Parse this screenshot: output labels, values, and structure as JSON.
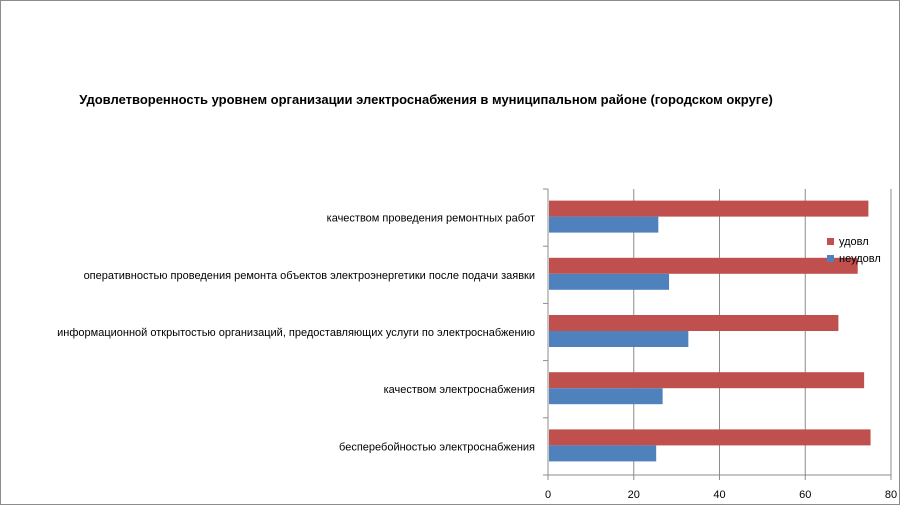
{
  "chart_data": {
    "type": "bar",
    "orientation": "horizontal",
    "title": "Удовлетворенность уровнем организации электроснабжения в муниципальном районе (городском округе)",
    "categories": [
      "качеством проведения ремонтных работ",
      "оперативностью проведения ремонта объектов электроэнергетики после подачи заявки",
      "информационной открытостью организаций, предоставляющих услуги по электроснабжению",
      "качеством электроснабжения",
      "бесперебойностью электроснабжения"
    ],
    "series": [
      {
        "name": "удовл",
        "color": "#C0504D",
        "values": [
          74.5,
          72,
          67.5,
          73.5,
          75
        ]
      },
      {
        "name": "неудовл",
        "color": "#4F81BD",
        "values": [
          25.5,
          28,
          32.5,
          26.5,
          25
        ]
      }
    ],
    "xlim": [
      0,
      80
    ],
    "xticks": [
      "0",
      "20",
      "40",
      "60",
      "80"
    ],
    "grid": "vertical",
    "legend_position": "right"
  }
}
